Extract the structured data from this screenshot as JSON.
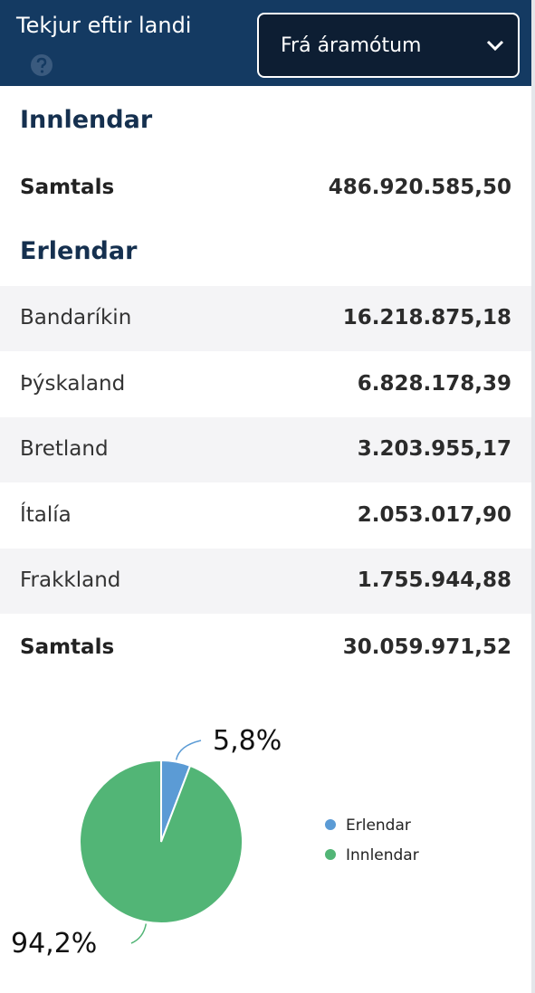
{
  "header": {
    "title": "Tekjur eftir landi",
    "dropdown": "Frá áramótum"
  },
  "domestic": {
    "heading": "Innlendar",
    "total_label": "Samtals",
    "total": "486.920.585,50"
  },
  "foreign": {
    "heading": "Erlendar",
    "rows": [
      [
        "Bandaríkin",
        "16.218.875,18"
      ],
      [
        "Þýskaland",
        "6.828.178,39"
      ],
      [
        "Bretland",
        "3.203.955,17"
      ],
      [
        "Ítalía",
        "2.053.017,90"
      ],
      [
        "Frakkland",
        "1.755.944,88"
      ]
    ],
    "total_label": "Samtals",
    "total": "30.059.971,52"
  },
  "chart_data": {
    "type": "pie",
    "categories": [
      "Erlendar",
      "Innlendar"
    ],
    "values": [
      5.8,
      94.2
    ],
    "value_labels": [
      "5,8%",
      "94,2%"
    ],
    "colors": [
      "#5b9bd5",
      "#52b576"
    ]
  }
}
